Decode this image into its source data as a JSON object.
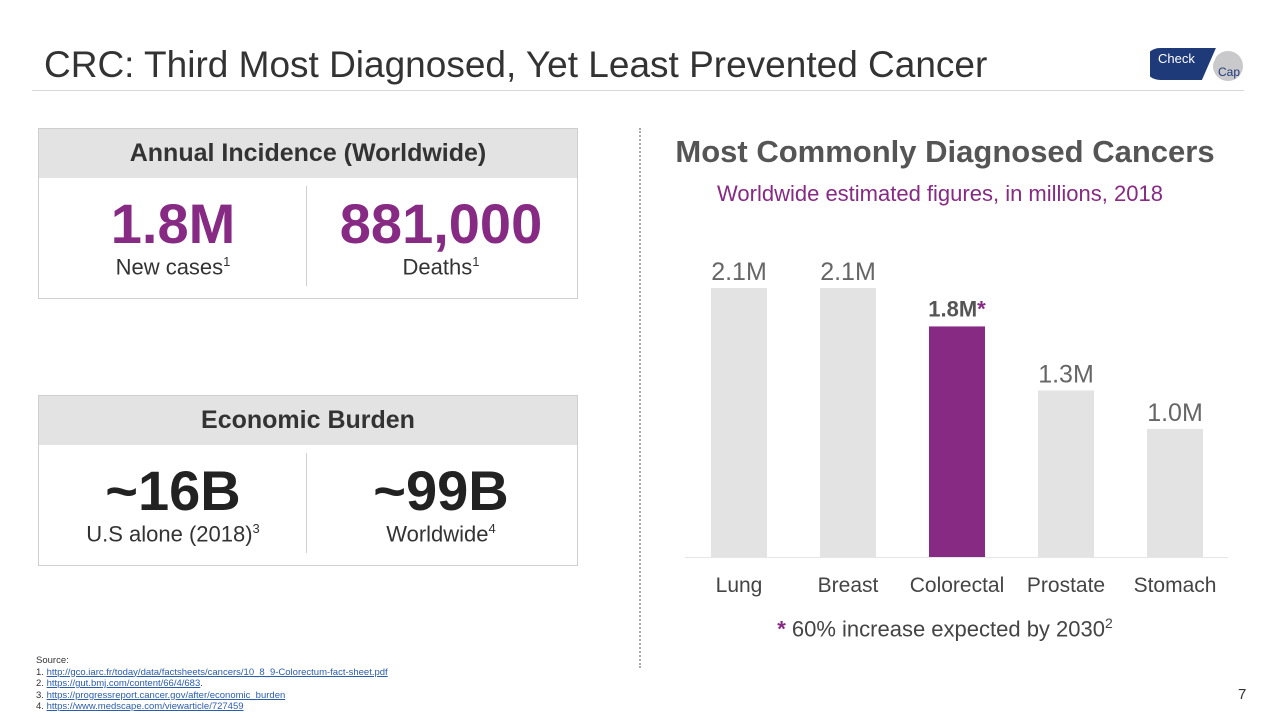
{
  "title": "CRC: Third Most Diagnosed, Yet Least Prevented Cancer",
  "logo_text": [
    "Check",
    "Cap"
  ],
  "incidence": {
    "header": "Annual Incidence (Worldwide)",
    "left": {
      "value": "1.8M",
      "label": "New cases",
      "ref": "1"
    },
    "right": {
      "value": "881,000",
      "label": "Deaths",
      "ref": "1"
    }
  },
  "economic": {
    "header": "Economic Burden",
    "left": {
      "value": "~16B",
      "label": "U.S alone (2018)",
      "ref": "3"
    },
    "right": {
      "value": "~99B",
      "label": "Worldwide",
      "ref": "4"
    }
  },
  "chart_data": {
    "type": "bar",
    "title": "Most Commonly Diagnosed Cancers",
    "subtitle": "Worldwide estimated figures, in millions, 2018",
    "categories": [
      "Lung",
      "Breast",
      "Colorectal",
      "Prostate",
      "Stomach"
    ],
    "values": [
      2.1,
      2.1,
      1.8,
      1.3,
      1.0
    ],
    "data_labels": [
      "2.1M",
      "2.1M",
      "1.8M",
      "1.3M",
      "1.0M"
    ],
    "highlight_index": 2,
    "highlight_marker": "*",
    "ylim": [
      0,
      2.1
    ],
    "grid": false,
    "colors": {
      "default": "#e3e3e3",
      "highlight": "#862a83",
      "label": "#666666"
    }
  },
  "note": {
    "star": "*",
    "text": " 60% increase expected by 2030",
    "ref": "2"
  },
  "sources": {
    "label": "Source:",
    "items": [
      {
        "num": "1.",
        "url": "http://gco.iarc.fr/today/data/factsheets/cancers/10_8_9-Colorectum-fact-sheet.pdf",
        "suffix": ""
      },
      {
        "num": "2.",
        "url": "https://gut.bmj.com/content/66/4/683",
        "suffix": "."
      },
      {
        "num": "3.",
        "url": "https://progressreport.cancer.gov/after/economic_burden",
        "suffix": ""
      },
      {
        "num": "4.",
        "url": "https://www.medscape.com/viewarticle/727459",
        "suffix": ""
      }
    ]
  },
  "page_number": "7",
  "colors": {
    "accent": "#862a83",
    "title": "#333333",
    "header_bg": "#e3e3e3"
  }
}
